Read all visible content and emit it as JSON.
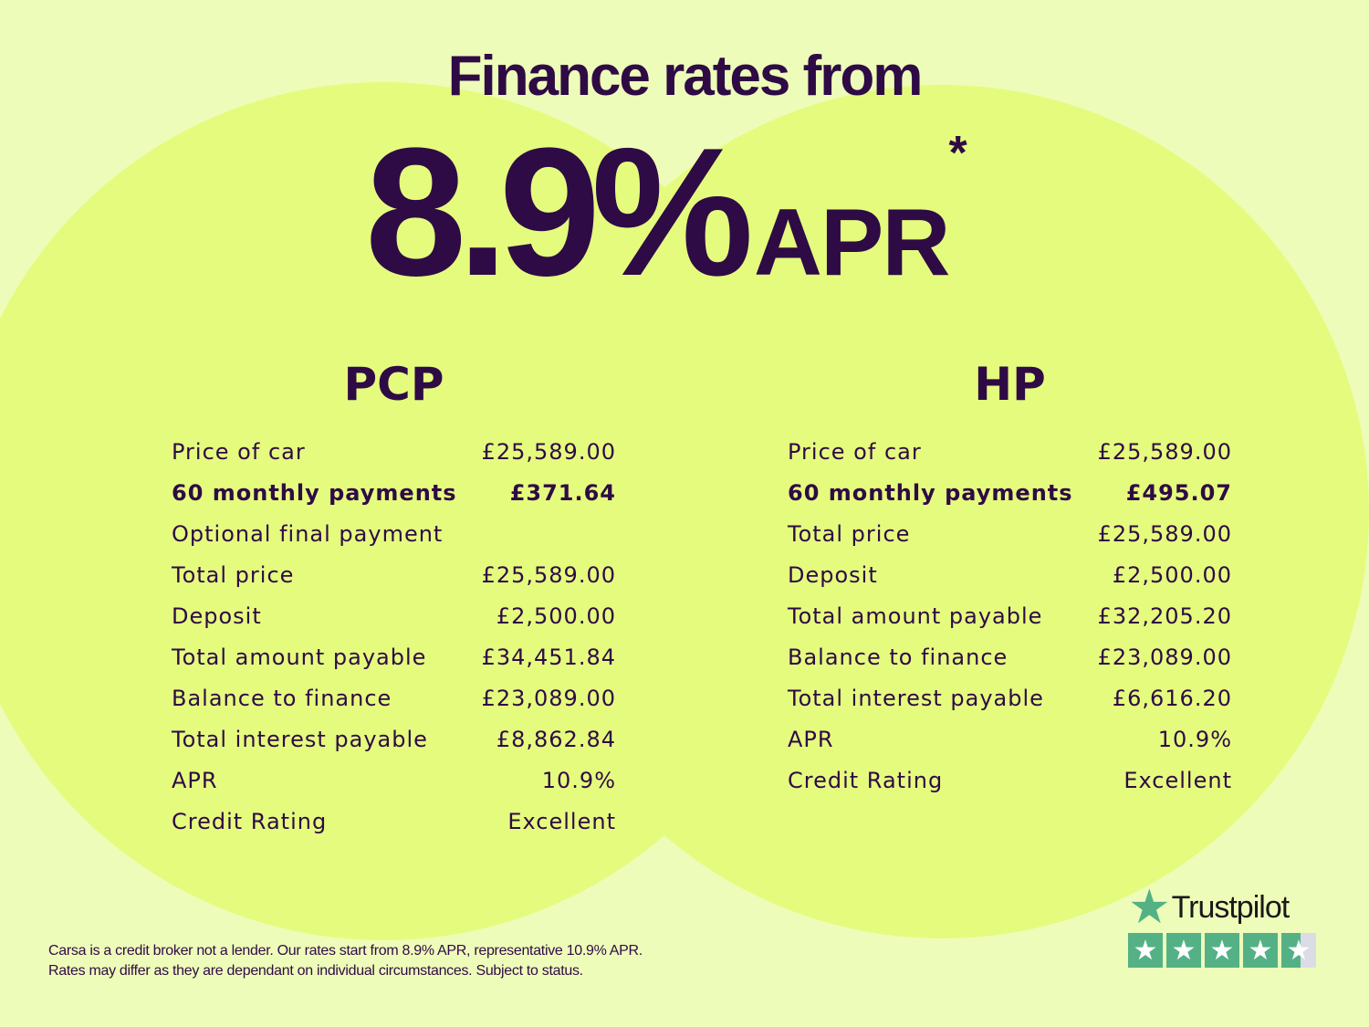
{
  "colors": {
    "text": "#2e0b45",
    "background": "#eefcb9",
    "circle": "#e5fb7e",
    "trustpilot": "#54b186"
  },
  "header": {
    "title": "Finance rates from",
    "rate": "8.9%",
    "apr": "APR",
    "asterisk": "*"
  },
  "pcp": {
    "heading": "PCP",
    "rows": [
      {
        "label": "Price of car",
        "value": "£25,589.00"
      },
      {
        "label": "60 monthly payments",
        "value": "£371.64",
        "bold": true
      },
      {
        "label": "Optional final payment",
        "value": ""
      },
      {
        "label": "Total price",
        "value": "£25,589.00"
      },
      {
        "label": "Deposit",
        "value": "£2,500.00"
      },
      {
        "label": "Total amount payable",
        "value": "£34,451.84"
      },
      {
        "label": "Balance to finance",
        "value": "£23,089.00"
      },
      {
        "label": "Total interest payable",
        "value": "£8,862.84"
      },
      {
        "label": "APR",
        "value": "10.9%"
      },
      {
        "label": "Credit Rating",
        "value": "Excellent"
      }
    ]
  },
  "hp": {
    "heading": "HP",
    "rows": [
      {
        "label": "Price of car",
        "value": "£25,589.00"
      },
      {
        "label": "60 monthly payments",
        "value": "£495.07",
        "bold": true
      },
      {
        "label": "Total price",
        "value": "£25,589.00"
      },
      {
        "label": "Deposit",
        "value": "£2,500.00"
      },
      {
        "label": "Total amount payable",
        "value": "£32,205.20"
      },
      {
        "label": "Balance to finance",
        "value": "£23,089.00"
      },
      {
        "label": "Total interest payable",
        "value": "£6,616.20"
      },
      {
        "label": "APR",
        "value": "10.9%"
      },
      {
        "label": "Credit Rating",
        "value": "Excellent"
      }
    ]
  },
  "footer": {
    "line1": "Carsa is a credit broker not a lender. Our rates start from 8.9% APR, representative 10.9% APR.",
    "line2": "Rates may differ as they are dependant on individual circumstances. Subject to status."
  },
  "trustpilot": {
    "name": "Trustpilot",
    "rating_stars": 4.5,
    "max_stars": 5
  }
}
